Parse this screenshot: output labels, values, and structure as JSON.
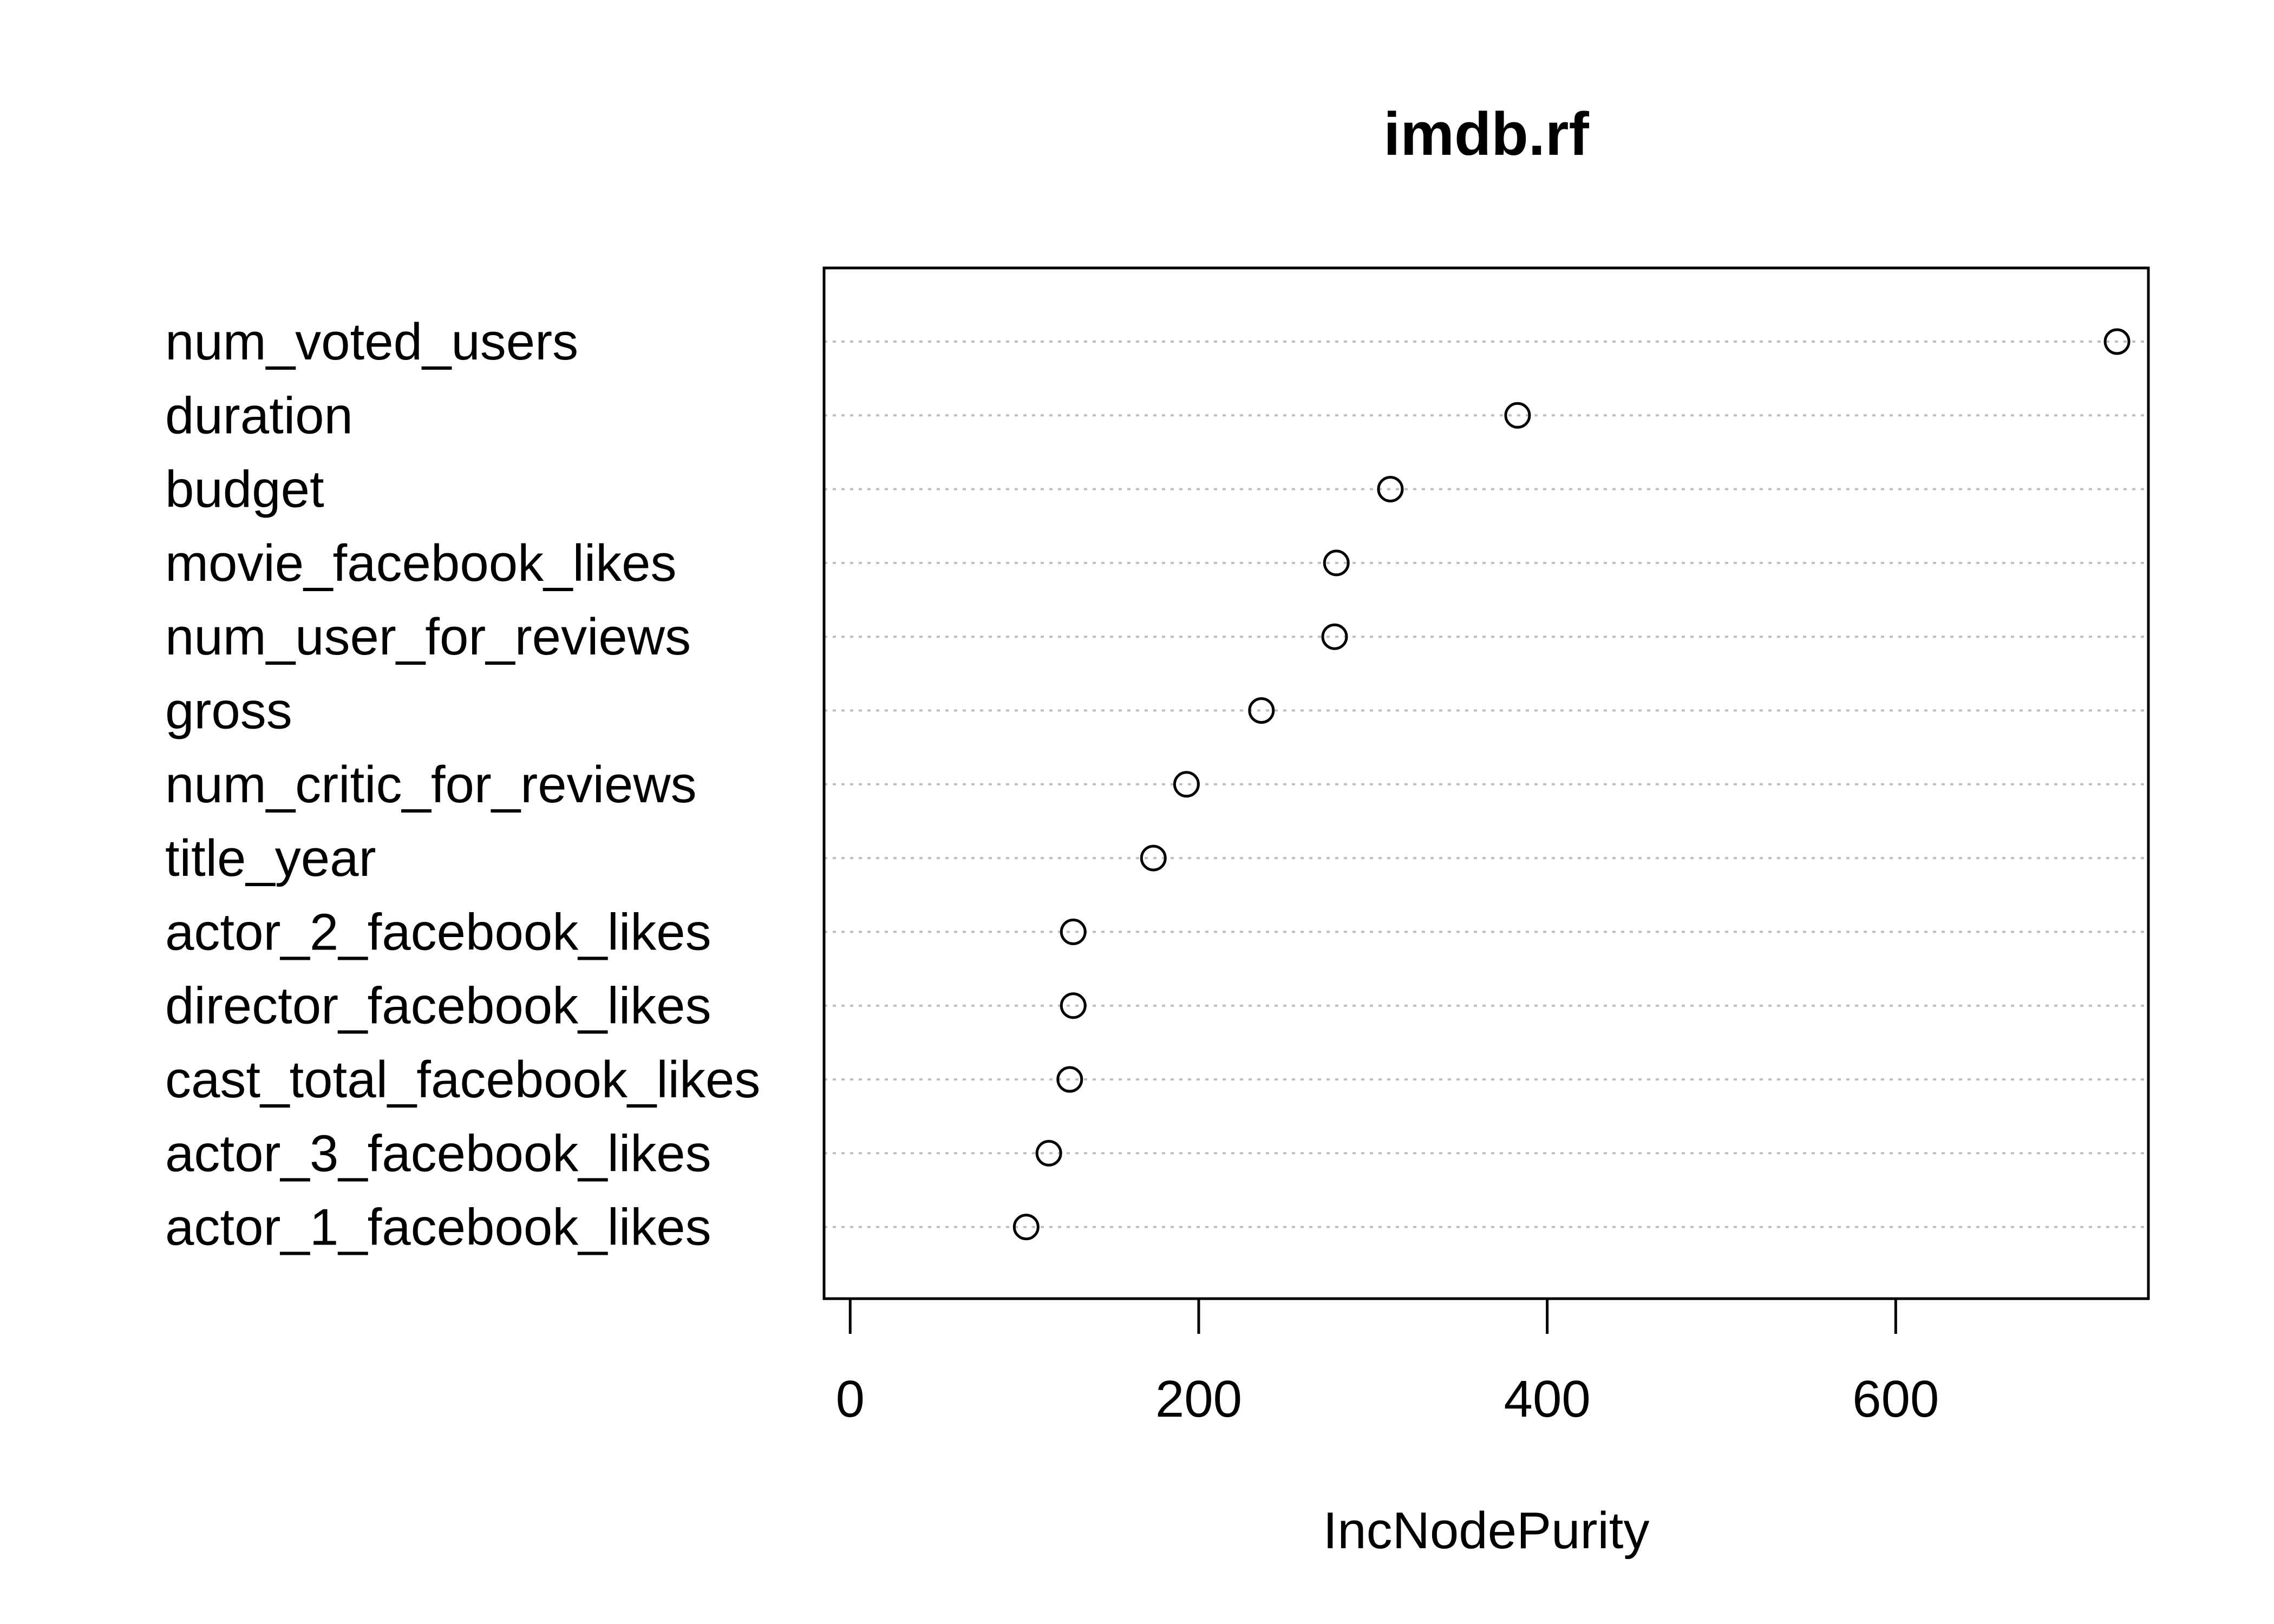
{
  "chart_data": {
    "type": "scatter",
    "title": "imdb.rf",
    "xlabel": "IncNodePurity",
    "ylabel": "",
    "xlim": [
      -15,
      745
    ],
    "xticks": [
      0,
      200,
      400,
      600
    ],
    "grid": "horizontal dotted",
    "categories": [
      "num_voted_users",
      "duration",
      "budget",
      "movie_facebook_likes",
      "num_user_for_reviews",
      "gross",
      "num_critic_for_reviews",
      "title_year",
      "actor_2_facebook_likes",
      "director_facebook_likes",
      "cast_total_facebook_likes",
      "actor_3_facebook_likes",
      "actor_1_facebook_likes"
    ],
    "values": [
      727,
      383,
      310,
      279,
      278,
      236,
      193,
      174,
      128,
      128,
      126,
      114,
      101
    ]
  }
}
